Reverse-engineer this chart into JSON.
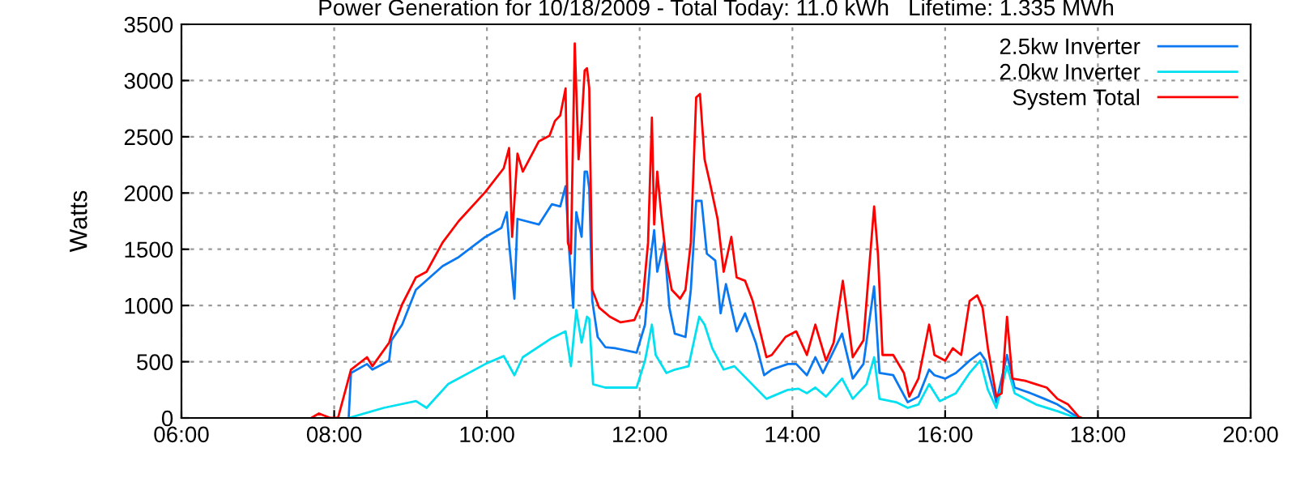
{
  "chart_data": {
    "type": "line",
    "title": "Power Generation for 10/18/2009 - Total Today: 11.0 kWh   Lifetime: 1.335 MWh",
    "ylabel": "Watts",
    "xlim": [
      6,
      20
    ],
    "xticks": [
      {
        "value": 6,
        "label": "06:00"
      },
      {
        "value": 8,
        "label": "08:00"
      },
      {
        "value": 10,
        "label": "10:00"
      },
      {
        "value": 12,
        "label": "12:00"
      },
      {
        "value": 14,
        "label": "14:00"
      },
      {
        "value": 16,
        "label": "16:00"
      },
      {
        "value": 18,
        "label": "18:00"
      },
      {
        "value": 20,
        "label": "20:00"
      }
    ],
    "ylim": [
      0,
      3500
    ],
    "yticks": [
      0,
      500,
      1000,
      1500,
      2000,
      2500,
      3000,
      3500
    ],
    "grid": true,
    "legend": "top right",
    "line_style": "solid",
    "series": [
      {
        "name": "2.5kw Inverter",
        "color": "#0a78f0",
        "x": [
          8.19,
          8.22,
          8.43,
          8.5,
          8.72,
          8.75,
          8.89,
          9.07,
          9.42,
          9.63,
          9.98,
          10.19,
          10.26,
          10.29,
          10.36,
          10.4,
          10.68,
          10.85,
          10.96,
          11.03,
          11.08,
          11.13,
          11.17,
          11.24,
          11.28,
          11.31,
          11.34,
          11.38,
          11.45,
          11.55,
          11.68,
          11.96,
          12.07,
          12.14,
          12.19,
          12.23,
          12.32,
          12.39,
          12.46,
          12.6,
          12.67,
          12.74,
          12.81,
          12.88,
          12.99,
          13.06,
          13.13,
          13.27,
          13.38,
          13.52,
          13.63,
          13.73,
          13.94,
          14.05,
          14.19,
          14.3,
          14.4,
          14.65,
          14.79,
          14.93,
          15.07,
          15.14,
          15.32,
          15.51,
          15.65,
          15.79,
          15.86,
          16.0,
          16.14,
          16.32,
          16.46,
          16.53,
          16.67,
          16.81,
          16.91,
          17.12,
          17.3,
          17.47,
          17.61,
          17.75
        ],
        "values": [
          0,
          400,
          480,
          430,
          510,
          690,
          830,
          1140,
          1350,
          1430,
          1610,
          1690,
          1830,
          1560,
          1060,
          1770,
          1720,
          1900,
          1880,
          2060,
          1460,
          980,
          1830,
          1610,
          2190,
          2190,
          2040,
          1040,
          720,
          630,
          620,
          580,
          830,
          1400,
          1670,
          1300,
          1560,
          980,
          750,
          720,
          1140,
          1930,
          1930,
          1460,
          1400,
          930,
          1190,
          770,
          930,
          670,
          380,
          430,
          480,
          480,
          380,
          540,
          400,
          750,
          350,
          480,
          1170,
          400,
          380,
          140,
          190,
          430,
          380,
          350,
          400,
          510,
          580,
          510,
          140,
          560,
          270,
          220,
          170,
          120,
          60,
          0
        ]
      },
      {
        "name": "2.0kw Inverter",
        "color": "#00e0f0",
        "x": [
          8.19,
          8.65,
          9.07,
          9.21,
          9.49,
          9.98,
          10.22,
          10.36,
          10.47,
          10.85,
          11.03,
          11.1,
          11.17,
          11.24,
          11.31,
          11.34,
          11.39,
          11.55,
          11.75,
          11.96,
          12.07,
          12.16,
          12.21,
          12.35,
          12.46,
          12.64,
          12.78,
          12.85,
          12.95,
          13.1,
          13.24,
          13.66,
          13.94,
          14.08,
          14.19,
          14.3,
          14.44,
          14.65,
          14.79,
          14.97,
          15.07,
          15.14,
          15.36,
          15.51,
          15.65,
          15.79,
          15.93,
          16.14,
          16.32,
          16.46,
          16.56,
          16.67,
          16.81,
          16.91,
          17.19,
          17.47,
          17.72
        ],
        "values": [
          0,
          90,
          150,
          90,
          300,
          480,
          550,
          380,
          540,
          710,
          770,
          460,
          960,
          670,
          900,
          880,
          300,
          270,
          270,
          270,
          510,
          830,
          560,
          400,
          430,
          460,
          900,
          830,
          620,
          430,
          460,
          170,
          250,
          260,
          220,
          270,
          190,
          350,
          170,
          300,
          540,
          170,
          140,
          90,
          120,
          300,
          150,
          220,
          400,
          510,
          250,
          90,
          460,
          220,
          120,
          60,
          0
        ]
      },
      {
        "name": "System Total",
        "color": "#ff0000",
        "x": [
          7.7,
          7.8,
          7.95,
          8.05,
          8.22,
          8.43,
          8.5,
          8.72,
          8.79,
          8.89,
          9.07,
          9.21,
          9.42,
          9.63,
          9.98,
          10.22,
          10.29,
          10.33,
          10.4,
          10.47,
          10.68,
          10.82,
          10.89,
          10.96,
          11.03,
          11.06,
          11.1,
          11.15,
          11.2,
          11.24,
          11.28,
          11.31,
          11.34,
          11.38,
          11.47,
          11.61,
          11.75,
          11.93,
          12.04,
          12.11,
          12.16,
          12.19,
          12.23,
          12.28,
          12.35,
          12.42,
          12.53,
          12.6,
          12.67,
          12.74,
          12.79,
          12.85,
          12.92,
          13.02,
          13.1,
          13.2,
          13.27,
          13.38,
          13.48,
          13.66,
          13.73,
          13.91,
          14.05,
          14.19,
          14.3,
          14.44,
          14.54,
          14.66,
          14.79,
          14.93,
          15.02,
          15.07,
          15.12,
          15.18,
          15.32,
          15.46,
          15.53,
          15.65,
          15.79,
          15.86,
          16.0,
          16.1,
          16.21,
          16.32,
          16.42,
          16.49,
          16.56,
          16.67,
          16.74,
          16.81,
          16.88,
          17.05,
          17.19,
          17.33,
          17.47,
          17.61,
          17.75,
          17.79
        ],
        "values": [
          0,
          40,
          0,
          0,
          430,
          540,
          460,
          670,
          830,
          1010,
          1250,
          1300,
          1560,
          1750,
          2010,
          2220,
          2400,
          1610,
          2350,
          2190,
          2460,
          2510,
          2640,
          2690,
          2930,
          1560,
          1460,
          3330,
          2300,
          2620,
          3090,
          3110,
          2930,
          1140,
          980,
          900,
          850,
          870,
          1040,
          1560,
          2670,
          1720,
          2190,
          1830,
          1400,
          1140,
          1060,
          1140,
          1560,
          2850,
          2880,
          2300,
          2090,
          1770,
          1300,
          1610,
          1250,
          1220,
          1040,
          540,
          560,
          720,
          770,
          560,
          830,
          510,
          670,
          1220,
          540,
          690,
          1460,
          1880,
          1460,
          560,
          560,
          400,
          190,
          350,
          830,
          560,
          510,
          620,
          560,
          1040,
          1090,
          980,
          620,
          190,
          220,
          900,
          350,
          330,
          300,
          270,
          170,
          120,
          10,
          0
        ]
      }
    ]
  }
}
